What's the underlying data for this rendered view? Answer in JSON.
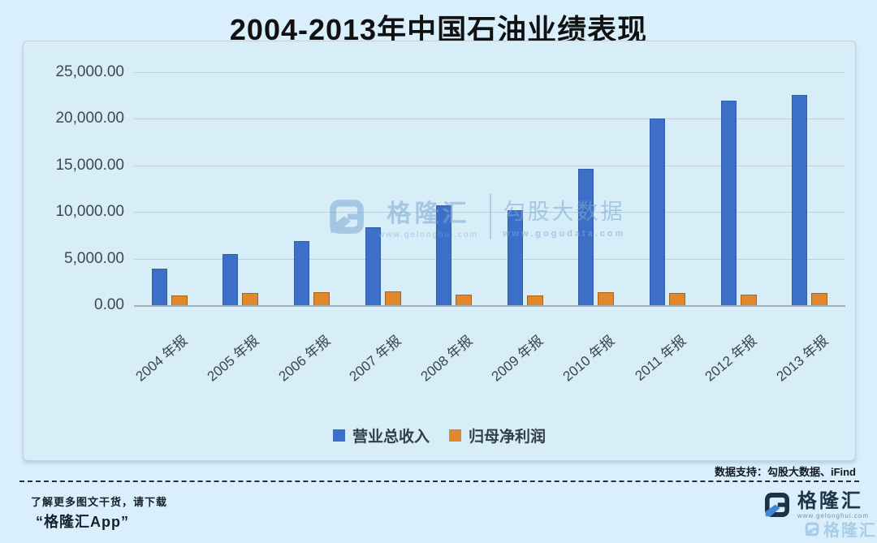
{
  "title": "2004-2013年中国石油业绩表现",
  "chart_data": {
    "type": "bar",
    "title": "2004-2013年中国石油业绩表现",
    "categories": [
      "2004 年报",
      "2005 年报",
      "2006 年报",
      "2007 年报",
      "2008 年报",
      "2009 年报",
      "2010 年报",
      "2011 年报",
      "2012 年报",
      "2013 年报"
    ],
    "series": [
      {
        "name": "营业总收入",
        "color": "#3c70c8",
        "border_color": "#2f5eab",
        "values": [
          3886,
          5522,
          6890,
          8350,
          10711,
          10193,
          14654,
          20038,
          21953,
          22581
        ]
      },
      {
        "name": "归母净利润",
        "color": "#e1882c",
        "border_color": "#a96417",
        "values": [
          1029,
          1334,
          1422,
          1456,
          1144,
          1034,
          1399,
          1330,
          1153,
          1296
        ]
      }
    ],
    "ylim": [
      0,
      25000
    ],
    "ytick_step": 5000,
    "ytick_labels_top_down": [
      "25,000.00",
      "20,000.00",
      "15,000.00",
      "10,000.00",
      "5,000.00",
      "0.00"
    ],
    "grid": true,
    "legend_position": "bottom-center",
    "xlabel": "",
    "ylabel": ""
  },
  "watermark_center": {
    "brand": "格隆汇",
    "brand_url": "www.gelonghui.com",
    "partner": "勾股大数据",
    "partner_url": "www.gogudata.com"
  },
  "source_note": "数据支持：勾股大数据、iFind",
  "footer": {
    "line1": "了解更多图文干货，请下载",
    "line2": "“格隆汇App”",
    "logo_name": "格隆汇",
    "logo_url": "www.gelonghui.com",
    "watermark_name": "格隆汇"
  }
}
